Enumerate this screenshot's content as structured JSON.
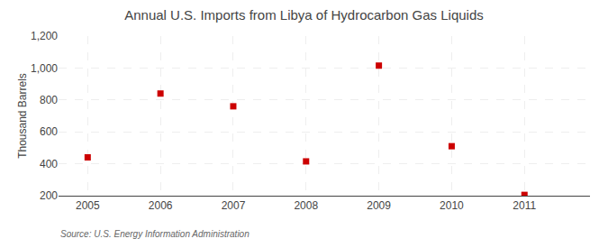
{
  "chart_data": {
    "type": "scatter",
    "title": "Annual U.S. Imports from Libya of Hydrocarbon Gas Liquids",
    "ylabel": "Thousand Barrels",
    "annotations": [
      "Source: U.S. Energy Information Administration"
    ],
    "x": [
      2005,
      2006,
      2007,
      2008,
      2009,
      2010,
      2011
    ],
    "values": [
      440,
      840,
      760,
      415,
      1015,
      510,
      205
    ],
    "color": "#cc0000",
    "marker": "square",
    "xlim": [
      2004.6,
      2011.9
    ],
    "xticks": [
      2005,
      2006,
      2007,
      2008,
      2009,
      2010,
      2011
    ],
    "ylim": [
      200,
      1200
    ],
    "yticks": [
      200,
      400,
      600,
      800,
      {
        "value": 1000,
        "label": "1,000"
      },
      {
        "value": 1200,
        "label": "1,200"
      }
    ],
    "grid": true
  }
}
